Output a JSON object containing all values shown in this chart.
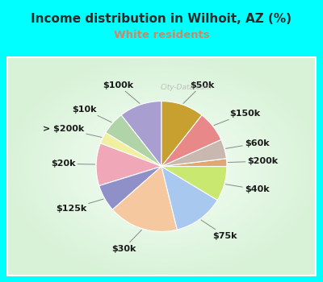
{
  "title": "Income distribution in Wilhoit, AZ (%)",
  "subtitle": "White residents",
  "title_color": "#2a2a2a",
  "subtitle_color": "#cc8866",
  "background_outer": "#00FFFF",
  "labels": [
    "$100k",
    "$10k",
    "> $200k",
    "$20k",
    "$125k",
    "$30k",
    "$75k",
    "$40k",
    "$200k",
    "$60k",
    "$150k",
    "$50k"
  ],
  "values": [
    11,
    6,
    3,
    11,
    7,
    18,
    13,
    9,
    2,
    5,
    8,
    11
  ],
  "colors": [
    "#a89fd0",
    "#b0d4a8",
    "#f0f0a0",
    "#f0a8b8",
    "#9090c8",
    "#f5c8a0",
    "#a8c8f0",
    "#c8e870",
    "#e0a870",
    "#c8b8b0",
    "#e88888",
    "#c8a030"
  ],
  "startangle": 90,
  "label_fontsize": 8,
  "watermark": "City-Data.com"
}
